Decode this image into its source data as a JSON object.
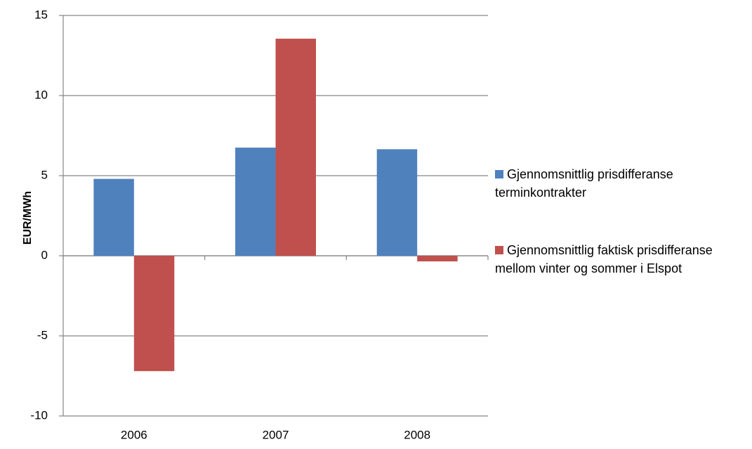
{
  "chart_data": {
    "type": "bar",
    "y_label": "EUR/MWh",
    "categories": [
      "2006",
      "2007",
      "2008"
    ],
    "series": [
      {
        "name": "Gjennomsnittlig prisdifferanse terminkontrakter",
        "color": "#4f81bd",
        "values": [
          4.8,
          6.75,
          6.65
        ]
      },
      {
        "name": "Gjennomsnittlig faktisk prisdifferanse mellom vinter og sommer i Elspot",
        "color": "#c0504d",
        "values": [
          -7.2,
          13.55,
          -0.35
        ]
      }
    ],
    "ylim": [
      -10,
      15
    ],
    "yticks": [
      -10,
      -5,
      0,
      5,
      10,
      15
    ],
    "grid": true,
    "legend": "right"
  }
}
